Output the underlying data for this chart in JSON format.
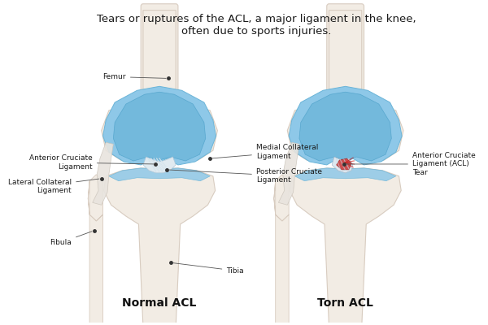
{
  "title": "Tears or ruptures of the ACL, a major ligament in the knee,\noften due to sports injuries.",
  "title_fontsize": 9.5,
  "label_fontsize": 6.5,
  "subtitle_normal": "Normal ACL",
  "subtitle_torn": "Torn ACL",
  "subtitle_fontsize": 10,
  "bg_color": "#ffffff",
  "bone_color": "#f2ece4",
  "bone_outline": "#d8ccc0",
  "bone_light": "#faf7f3",
  "cartilage_blue_outer": "#8ec8e8",
  "cartilage_blue_mid": "#6ab4d8",
  "cartilage_blue_inner": "#4a9fc8",
  "label_color": "#1a1a1a",
  "arrow_color": "#555555",
  "lcl_color": "#ddd8d0",
  "lcl_edge": "#bbb4aa"
}
